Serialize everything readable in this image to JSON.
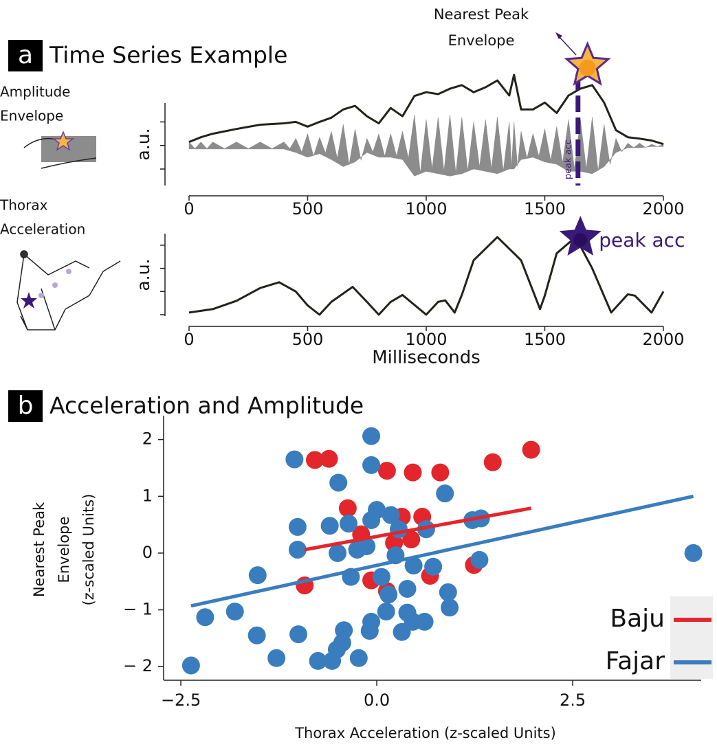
{
  "panels": [
    {
      "label": "a",
      "title": "Time Series Example"
    },
    {
      "label": "b",
      "title": "Acceleration and Amplitude"
    }
  ],
  "chart_data": [
    {
      "type": "line",
      "side_label": [
        "Amplitude",
        "Envelope"
      ],
      "ylabel": "a.u.",
      "x": [
        0,
        50,
        100,
        200,
        300,
        400,
        450,
        500,
        550,
        600,
        650,
        700,
        750,
        800,
        850,
        900,
        950,
        1000,
        1050,
        1100,
        1150,
        1200,
        1250,
        1300,
        1350,
        1370,
        1400,
        1450,
        1500,
        1550,
        1600,
        1650,
        1700,
        1750,
        1800,
        1850,
        1900,
        1950,
        2000
      ],
      "series": [
        {
          "style": "band",
          "color": "#8c8c8c",
          "values": [
            0.15,
            0.15,
            0.15,
            0.15,
            0.15,
            0.15,
            0.3,
            0.5,
            0.35,
            0.6,
            0.9,
            0.7,
            0.3,
            0.5,
            0.5,
            0.6,
            1.3,
            1.1,
            1.2,
            1.3,
            1.2,
            1.0,
            1.1,
            1.2,
            1.0,
            1.0,
            0.6,
            0.5,
            0.7,
            0.8,
            1.1,
            1.1,
            1.2,
            0.9,
            0.3,
            0.1,
            0.1,
            0.05,
            0.05
          ]
        },
        {
          "style": "line",
          "color": "#23231c",
          "values": [
            0.15,
            0.35,
            0.5,
            0.7,
            0.88,
            0.94,
            1.0,
            0.8,
            1.0,
            1.18,
            1.53,
            1.68,
            1.24,
            0.94,
            1.59,
            1.24,
            2.1,
            2.26,
            2.18,
            2.41,
            2.56,
            2.26,
            2.47,
            2.76,
            2.12,
            3.0,
            1.53,
            1.53,
            1.82,
            1.38,
            2.12,
            2.41,
            2.56,
            1.82,
            0.65,
            0.35,
            0.29,
            0.21,
            0.06
          ]
        }
      ],
      "xlim": [
        0,
        2000
      ],
      "xticks": [
        0,
        500,
        1000,
        1500,
        2000
      ],
      "ylim": [
        -1.7,
        1.8
      ],
      "yticks": [
        -1,
        0,
        1
      ],
      "marker_line": {
        "label": "peak acc",
        "x": 1640,
        "color": "#3a1a78"
      },
      "star": {
        "x": 1680,
        "y": 3.38,
        "color": "#f5b642"
      },
      "annotation": [
        "Nearest Peak",
        "Envelope"
      ]
    },
    {
      "type": "line",
      "side_label": [
        "Thorax",
        "Acceleration"
      ],
      "ylabel": "a.u.",
      "xlabel": "Milliseconds",
      "x": [
        0,
        100,
        200,
        300,
        380,
        450,
        500,
        550,
        600,
        690,
        750,
        800,
        850,
        900,
        1000,
        1050,
        1080,
        1120,
        1150,
        1200,
        1300,
        1400,
        1480,
        1500,
        1550,
        1630,
        1700,
        1780,
        1850,
        1880,
        1950,
        2000
      ],
      "series": [
        {
          "style": "line",
          "color": "#23231c",
          "values": [
            0.09,
            0.24,
            0.6,
            1.15,
            1.4,
            1.0,
            0.4,
            0,
            0.55,
            1.2,
            0.55,
            0,
            0.55,
            0.85,
            0,
            0.55,
            0.62,
            0.09,
            0.85,
            2.35,
            3.35,
            2.35,
            0.24,
            0.82,
            2.65,
            3.35,
            2.0,
            0.09,
            0.88,
            0.82,
            0.09,
            1.0
          ]
        }
      ],
      "xlim": [
        0,
        2000
      ],
      "xticks": [
        0,
        500,
        1000,
        1500,
        2000
      ],
      "ylim": [
        -0.06,
        3.5
      ],
      "yticks": [
        0,
        1,
        2,
        3
      ],
      "star": {
        "x": 1650,
        "y": 3.32,
        "color": "#3a1a78",
        "label": "peak acc"
      }
    },
    {
      "type": "scatter",
      "ylabel": [
        "Nearest Peak",
        "Envelope",
        "(z-scaled Units)"
      ],
      "xlabel": "Thorax Acceleration (z-scaled Units)",
      "xlim": [
        -2.72,
        4.14
      ],
      "xticks": [
        {
          "value": -2.5,
          "label": "−2.5"
        },
        {
          "value": 0,
          "label": "0.0"
        },
        2.5
      ],
      "ylim": [
        -2.24,
        2.42
      ],
      "yticks": [
        {
          "value": -2,
          "label": "− 2"
        },
        {
          "value": -1,
          "label": "− 1"
        },
        0,
        1,
        2
      ],
      "legend": "lower right",
      "series": [
        {
          "name": "Baju",
          "color": "#e3262b",
          "x": [
            -0.79,
            -0.61,
            0.13,
            0.46,
            0.81,
            1.48,
            1.97,
            0.32,
            0.58,
            -0.2,
            0.22,
            0.44,
            -0.07,
            0.13,
            0.68,
            1.24,
            -0.92,
            -0.37
          ],
          "values": [
            1.64,
            1.66,
            1.45,
            1.42,
            1.42,
            1.6,
            1.82,
            0.64,
            0.64,
            0.33,
            0.18,
            0.24,
            -0.48,
            -0.67,
            -0.4,
            -0.21,
            -0.57,
            0.79
          ],
          "fit": {
            "x": [
              -0.92,
              1.97
            ],
            "values": [
              0.06,
              0.79
            ]
          }
        },
        {
          "name": "Fajar",
          "color": "#3a7dbf",
          "x": [
            -0.07,
            -0.07,
            -1.05,
            -0.49,
            0.87,
            0.18,
            -0.07,
            0,
            -1.01,
            -0.6,
            -0.36,
            0.28,
            0.63,
            1.22,
            1.33,
            -1.01,
            -0.5,
            -0.25,
            -0.13,
            0.24,
            0.47,
            0.72,
            1.31,
            -1.52,
            -0.33,
            0.06,
            0.39,
            0.91,
            0.93,
            -1.81,
            -2.19,
            0.12,
            0.39,
            0.46,
            0.61,
            -0.07,
            -0.09,
            -0.42,
            -0.44,
            -0.51,
            0.32,
            -1.0,
            -1.53,
            -1.28,
            -2.37,
            -0.75,
            -0.57,
            -0.23,
            4.04,
            0.15
          ],
          "values": [
            2.06,
            1.55,
            1.65,
            1.24,
            1.05,
            0.67,
            0.58,
            0.76,
            0.46,
            0.48,
            0.52,
            0.42,
            0.42,
            0.58,
            0.61,
            0.06,
            0,
            0.06,
            0.12,
            -0.04,
            -0.22,
            -0.24,
            -0.12,
            -0.39,
            -0.42,
            -0.42,
            -0.63,
            -0.69,
            -0.96,
            -1.03,
            -1.13,
            -1.03,
            -1.05,
            -1.21,
            -1.21,
            -1.21,
            -1.37,
            -1.36,
            -1.58,
            -1.7,
            -1.39,
            -1.43,
            -1.45,
            -1.85,
            -1.98,
            -1.9,
            -1.9,
            -1.85,
            0,
            -0.73
          ],
          "fit": {
            "x": [
              -2.37,
              4.04
            ],
            "values": [
              -0.93,
              1.0
            ]
          }
        }
      ]
    }
  ]
}
